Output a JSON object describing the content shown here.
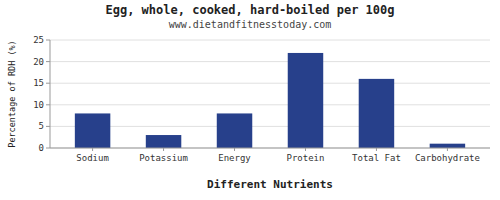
{
  "chart_data": {
    "type": "bar",
    "title": "Egg, whole, cooked, hard-boiled per 100g",
    "subtitle": "www.dietandfitnesstoday.com",
    "xlabel": "Different Nutrients",
    "ylabel": "Percentage of RDH (%)",
    "categories": [
      "Sodium",
      "Potassium",
      "Energy",
      "Protein",
      "Total Fat",
      "Carbohydrate"
    ],
    "values": [
      8,
      3,
      8,
      22,
      16,
      1
    ],
    "color": "#27408B",
    "ylim": [
      0,
      25
    ],
    "yticks": [
      0,
      5,
      10,
      15,
      20,
      25
    ],
    "grid": true
  }
}
